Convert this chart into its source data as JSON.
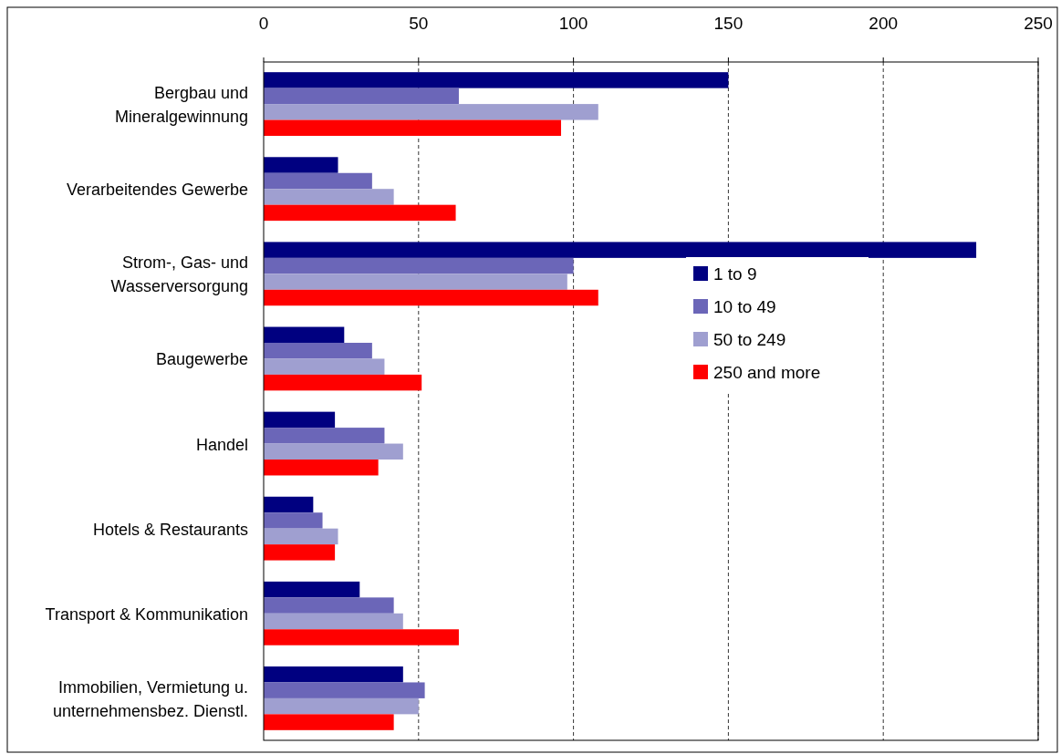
{
  "chart_data": {
    "type": "bar",
    "orientation": "horizontal",
    "categories": [
      "Bergbau und\nMineralgewinnung",
      "Verarbeitendes Gewerbe",
      "Strom-, Gas- und\nWasserversorgung",
      "Baugewerbe",
      "Handel",
      "Hotels & Restaurants",
      "Transport & Kommunikation",
      "Immobilien, Vermietung u.\nunternehmensbez. Dienstl."
    ],
    "series": [
      {
        "name": "1 to 9",
        "color": "#000080",
        "values": [
          150,
          24,
          230,
          26,
          23,
          16,
          31,
          45
        ]
      },
      {
        "name": "10 to 49",
        "color": "#6b66b8",
        "values": [
          63,
          35,
          100,
          35,
          39,
          19,
          42,
          52
        ]
      },
      {
        "name": "50 to 249",
        "color": "#9f9fd0",
        "values": [
          108,
          42,
          98,
          39,
          45,
          24,
          45,
          50
        ]
      },
      {
        "name": "250 and more",
        "color": "#ff0000",
        "values": [
          96,
          62,
          108,
          51,
          37,
          23,
          63,
          42
        ]
      }
    ],
    "xlim": [
      0,
      250
    ],
    "xticks": [
      0,
      50,
      100,
      150,
      200,
      250
    ],
    "grid": "x",
    "legend": "right"
  }
}
